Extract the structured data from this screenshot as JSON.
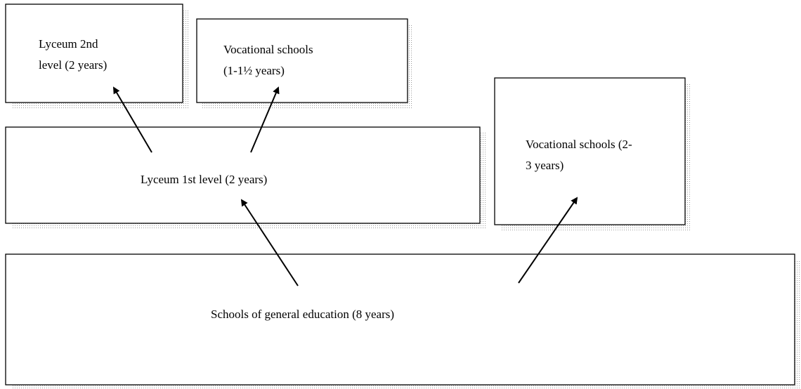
{
  "nodes": [
    {
      "lines": [
        "Lyceum 2nd",
        "level (2 years)"
      ]
    },
    {
      "lines": [
        "Vocational schools",
        "(1-1½ years)"
      ]
    },
    {
      "lines": [
        "Lyceum 1st level (2 years)"
      ]
    },
    {
      "lines": [
        "Vocational schools (2-",
        "3 years)"
      ]
    },
    {
      "lines": [
        "Schools of general education (8 years)"
      ]
    }
  ]
}
